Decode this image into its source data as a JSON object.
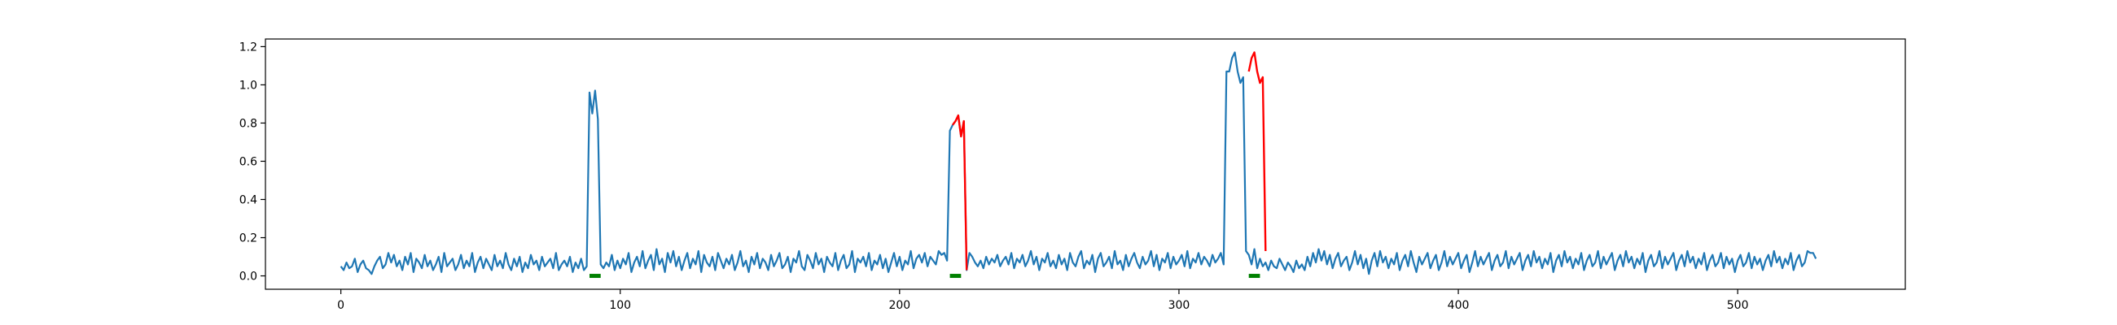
{
  "chart_data": {
    "type": "line",
    "title": "",
    "xlabel": "",
    "ylabel": "",
    "xlim": [
      -27,
      560
    ],
    "ylim": [
      -0.07,
      1.24
    ],
    "grid": false,
    "legend": "none",
    "x_ticks": [
      0,
      100,
      200,
      300,
      400,
      500
    ],
    "x_tick_labels": [
      "0",
      "100",
      "200",
      "300",
      "400",
      "500"
    ],
    "y_ticks": [
      0.0,
      0.2,
      0.4,
      0.6,
      0.8,
      1.0,
      1.2
    ],
    "y_tick_labels": [
      "0.0",
      "0.2",
      "0.4",
      "0.6",
      "0.8",
      "1.0",
      "1.2"
    ],
    "x_start": 0,
    "x_step": 1,
    "signal": [
      0.05,
      0.03,
      0.07,
      0.04,
      0.05,
      0.09,
      0.02,
      0.06,
      0.08,
      0.04,
      0.03,
      0.01,
      0.05,
      0.08,
      0.1,
      0.04,
      0.06,
      0.12,
      0.07,
      0.11,
      0.05,
      0.08,
      0.03,
      0.1,
      0.06,
      0.12,
      0.02,
      0.09,
      0.07,
      0.04,
      0.11,
      0.05,
      0.08,
      0.03,
      0.06,
      0.1,
      0.02,
      0.12,
      0.05,
      0.07,
      0.09,
      0.03,
      0.06,
      0.11,
      0.04,
      0.08,
      0.05,
      0.12,
      0.02,
      0.07,
      0.1,
      0.04,
      0.09,
      0.06,
      0.03,
      0.11,
      0.05,
      0.08,
      0.04,
      0.12,
      0.06,
      0.03,
      0.09,
      0.05,
      0.1,
      0.02,
      0.07,
      0.04,
      0.11,
      0.06,
      0.08,
      0.03,
      0.1,
      0.05,
      0.07,
      0.09,
      0.04,
      0.12,
      0.03,
      0.06,
      0.08,
      0.05,
      0.1,
      0.02,
      0.07,
      0.04,
      0.09,
      0.03,
      0.05,
      0.96,
      0.85,
      0.97,
      0.82,
      0.06,
      0.04,
      0.07,
      0.05,
      0.11,
      0.03,
      0.08,
      0.04,
      0.09,
      0.06,
      0.12,
      0.02,
      0.07,
      0.1,
      0.05,
      0.13,
      0.04,
      0.08,
      0.11,
      0.03,
      0.14,
      0.06,
      0.09,
      0.02,
      0.12,
      0.07,
      0.13,
      0.05,
      0.1,
      0.03,
      0.08,
      0.12,
      0.04,
      0.09,
      0.06,
      0.13,
      0.02,
      0.11,
      0.07,
      0.05,
      0.1,
      0.03,
      0.12,
      0.08,
      0.04,
      0.09,
      0.06,
      0.11,
      0.03,
      0.07,
      0.13,
      0.05,
      0.08,
      0.02,
      0.1,
      0.06,
      0.12,
      0.04,
      0.09,
      0.07,
      0.03,
      0.11,
      0.05,
      0.08,
      0.12,
      0.04,
      0.06,
      0.1,
      0.02,
      0.09,
      0.07,
      0.13,
      0.05,
      0.03,
      0.11,
      0.08,
      0.04,
      0.12,
      0.06,
      0.09,
      0.02,
      0.1,
      0.07,
      0.05,
      0.12,
      0.03,
      0.08,
      0.11,
      0.04,
      0.06,
      0.13,
      0.02,
      0.09,
      0.07,
      0.1,
      0.05,
      0.12,
      0.03,
      0.08,
      0.06,
      0.11,
      0.04,
      0.09,
      0.02,
      0.07,
      0.12,
      0.05,
      0.1,
      0.03,
      0.08,
      0.06,
      0.13,
      0.04,
      0.09,
      0.11,
      0.07,
      0.12,
      0.05,
      0.1,
      0.08,
      0.06,
      0.13,
      0.11,
      0.12,
      0.08,
      0.76,
      0.79,
      0.81,
      0.84,
      0.73,
      0.81,
      0.03,
      0.12,
      0.1,
      0.07,
      0.05,
      0.08,
      0.04,
      0.1,
      0.06,
      0.09,
      0.07,
      0.11,
      0.05,
      0.08,
      0.1,
      0.06,
      0.12,
      0.04,
      0.09,
      0.07,
      0.11,
      0.05,
      0.08,
      0.13,
      0.06,
      0.1,
      0.03,
      0.09,
      0.07,
      0.12,
      0.05,
      0.08,
      0.04,
      0.11,
      0.06,
      0.09,
      0.03,
      0.12,
      0.07,
      0.05,
      0.1,
      0.13,
      0.04,
      0.08,
      0.06,
      0.11,
      0.02,
      0.09,
      0.12,
      0.05,
      0.07,
      0.1,
      0.04,
      0.13,
      0.06,
      0.08,
      0.03,
      0.11,
      0.05,
      0.09,
      0.12,
      0.07,
      0.04,
      0.1,
      0.06,
      0.08,
      0.13,
      0.05,
      0.11,
      0.03,
      0.09,
      0.07,
      0.12,
      0.04,
      0.1,
      0.06,
      0.08,
      0.11,
      0.05,
      0.13,
      0.04,
      0.09,
      0.07,
      0.12,
      0.06,
      0.1,
      0.08,
      0.05,
      0.11,
      0.07,
      0.09,
      0.12,
      0.06,
      1.07,
      1.07,
      1.14,
      1.17,
      1.07,
      1.01,
      1.04,
      0.13,
      0.11,
      0.06,
      0.14,
      0.04,
      0.09,
      0.05,
      0.07,
      0.03,
      0.08,
      0.05,
      0.04,
      0.09,
      0.06,
      0.03,
      0.07,
      0.05,
      0.02,
      0.08,
      0.04,
      0.06,
      0.03,
      0.1,
      0.05,
      0.12,
      0.07,
      0.14,
      0.08,
      0.13,
      0.06,
      0.11,
      0.04,
      0.09,
      0.12,
      0.05,
      0.08,
      0.1,
      0.03,
      0.07,
      0.13,
      0.06,
      0.11,
      0.04,
      0.09,
      0.01,
      0.08,
      0.12,
      0.05,
      0.13,
      0.07,
      0.1,
      0.04,
      0.09,
      0.06,
      0.12,
      0.03,
      0.08,
      0.11,
      0.05,
      0.13,
      0.07,
      0.02,
      0.1,
      0.06,
      0.09,
      0.12,
      0.04,
      0.08,
      0.11,
      0.03,
      0.07,
      0.13,
      0.05,
      0.1,
      0.06,
      0.09,
      0.12,
      0.04,
      0.08,
      0.11,
      0.02,
      0.07,
      0.13,
      0.05,
      0.1,
      0.06,
      0.09,
      0.12,
      0.03,
      0.08,
      0.11,
      0.05,
      0.07,
      0.13,
      0.04,
      0.1,
      0.06,
      0.09,
      0.12,
      0.03,
      0.08,
      0.11,
      0.05,
      0.13,
      0.07,
      0.1,
      0.04,
      0.09,
      0.06,
      0.12,
      0.02,
      0.08,
      0.11,
      0.05,
      0.13,
      0.07,
      0.1,
      0.04,
      0.09,
      0.06,
      0.12,
      0.03,
      0.08,
      0.11,
      0.05,
      0.07,
      0.13,
      0.04,
      0.1,
      0.06,
      0.09,
      0.12,
      0.03,
      0.08,
      0.11,
      0.05,
      0.13,
      0.07,
      0.1,
      0.04,
      0.09,
      0.06,
      0.12,
      0.02,
      0.08,
      0.11,
      0.05,
      0.07,
      0.13,
      0.04,
      0.1,
      0.06,
      0.09,
      0.12,
      0.03,
      0.08,
      0.11,
      0.05,
      0.13,
      0.07,
      0.1,
      0.04,
      0.09,
      0.06,
      0.12,
      0.03,
      0.08,
      0.11,
      0.05,
      0.07,
      0.12,
      0.04,
      0.1,
      0.06,
      0.09,
      0.02,
      0.08,
      0.11,
      0.05,
      0.07,
      0.12,
      0.04,
      0.1,
      0.06,
      0.09,
      0.03,
      0.08,
      0.11,
      0.05,
      0.13,
      0.07,
      0.1,
      0.04,
      0.09,
      0.06,
      0.12,
      0.03,
      0.08,
      0.11,
      0.05,
      0.07,
      0.13,
      0.12,
      0.12,
      0.09
    ],
    "signal_color": "#1f77b4",
    "highlighted_segments": [
      {
        "x": [
          219,
          220,
          221,
          222,
          223,
          224
        ],
        "y": [
          0.79,
          0.81,
          0.84,
          0.73,
          0.81,
          0.03
        ],
        "color": "#ff0000"
      },
      {
        "x": [
          325,
          326,
          327,
          328,
          329,
          330,
          331
        ],
        "y": [
          1.07,
          1.14,
          1.17,
          1.07,
          1.01,
          1.04,
          0.13
        ],
        "color": "#ff0000"
      }
    ],
    "markers": [
      {
        "x_start": 89,
        "x_end": 93,
        "y": 0.0,
        "color": "#008000"
      },
      {
        "x_start": 218,
        "x_end": 222,
        "y": 0.0,
        "color": "#008000"
      },
      {
        "x_start": 325,
        "x_end": 329,
        "y": 0.0,
        "color": "#008000"
      }
    ]
  }
}
